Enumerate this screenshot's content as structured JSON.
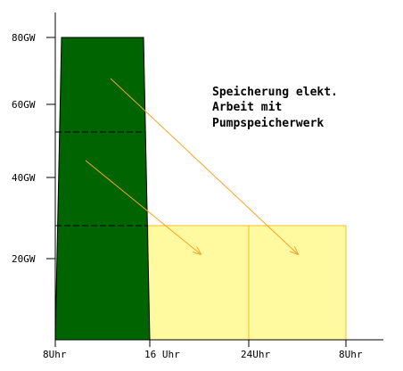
{
  "title_lines": [
    "Speicherung elekt.",
    "Arbeit mit",
    "Pumpspeicherwerk"
  ],
  "y_ticks": [
    "80GW",
    "60GW",
    "40GW",
    "20GW"
  ],
  "x_ticks": [
    "8Uhr",
    "16 Uhr",
    "24Uhr",
    "8Uhr"
  ],
  "colors": {
    "generation_fill": "#006400",
    "storage_fill": "#fffaa0",
    "storage_border": "#f0c020",
    "arrow": "#ffa020",
    "axis": "#000000"
  }
}
